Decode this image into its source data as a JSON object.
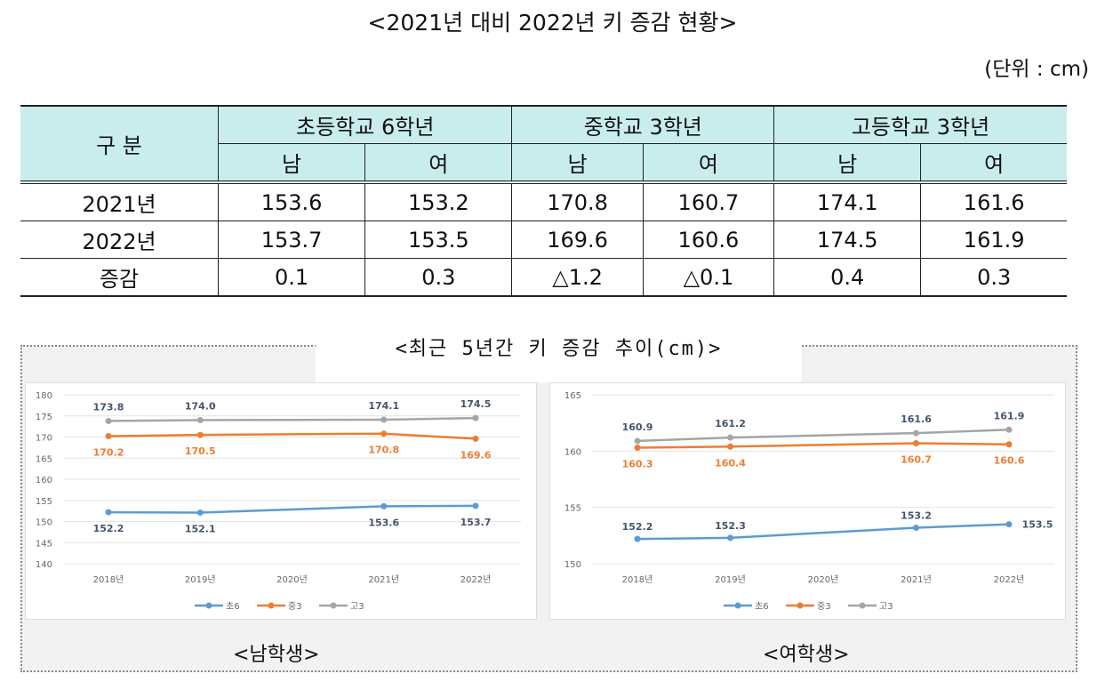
{
  "title": "<2021년 대비 2022년 키 증감 현황>",
  "unit": "(단위 : cm)",
  "table": {
    "category": "구  분",
    "groups": [
      "초등학교 6학년",
      "중학교 3학년",
      "고등학교 3학년"
    ],
    "sexes": [
      "남",
      "여",
      "남",
      "여",
      "남",
      "여"
    ],
    "rows": [
      {
        "label": "2021년",
        "values": [
          "153.6",
          "153.2",
          "170.8",
          "160.7",
          "174.1",
          "161.6"
        ]
      },
      {
        "label": "2022년",
        "values": [
          "153.7",
          "153.5",
          "169.6",
          "160.6",
          "174.5",
          "161.9"
        ]
      },
      {
        "label": "증감",
        "values": [
          "0.1",
          "0.3",
          "△1.2",
          "△0.1",
          "0.4",
          "0.3"
        ]
      }
    ]
  },
  "charts_title": "<최근 5년간 키 증감 추이(cm)>",
  "chart_data": [
    {
      "type": "line",
      "caption": "<남학생>",
      "categories": [
        "2018년",
        "2019년",
        "2020년",
        "2021년",
        "2022년"
      ],
      "ylim": [
        140,
        180
      ],
      "yticks": [
        140,
        145,
        150,
        155,
        160,
        165,
        170,
        175,
        180
      ],
      "grid": true,
      "legend": "bottom",
      "series": [
        {
          "name": "초6",
          "color": "#5b9bd5",
          "values": [
            152.2,
            152.1,
            null,
            153.6,
            153.7
          ]
        },
        {
          "name": "중3",
          "color": "#ed7d31",
          "values": [
            170.2,
            170.5,
            null,
            170.8,
            169.6
          ]
        },
        {
          "name": "고3",
          "color": "#a5a5a5",
          "values": [
            173.8,
            174.0,
            null,
            174.1,
            174.5
          ]
        }
      ]
    },
    {
      "type": "line",
      "caption": "<여학생>",
      "categories": [
        "2018년",
        "2019년",
        "2020년",
        "2021년",
        "2022년"
      ],
      "ylim": [
        150,
        165
      ],
      "yticks": [
        150,
        155,
        160,
        165
      ],
      "grid": true,
      "legend": "bottom",
      "series": [
        {
          "name": "초6",
          "color": "#5b9bd5",
          "values": [
            152.2,
            152.3,
            null,
            153.2,
            153.5
          ]
        },
        {
          "name": "중3",
          "color": "#ed7d31",
          "values": [
            160.3,
            160.4,
            null,
            160.7,
            160.6
          ]
        },
        {
          "name": "고3",
          "color": "#a5a5a5",
          "values": [
            160.9,
            161.2,
            null,
            161.6,
            161.9
          ]
        }
      ]
    }
  ]
}
